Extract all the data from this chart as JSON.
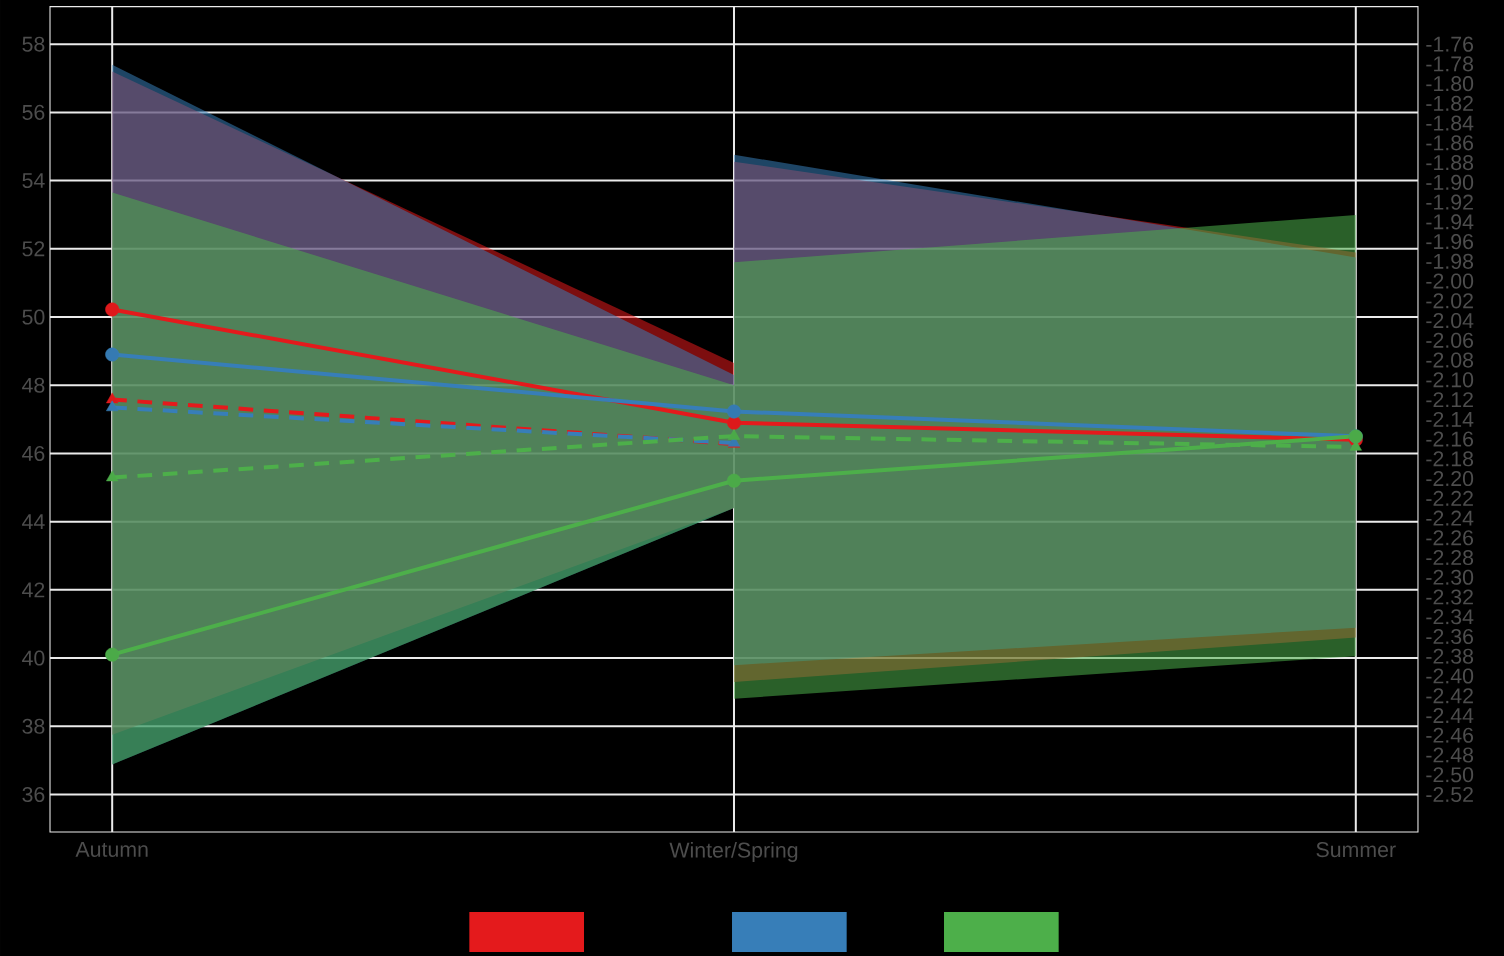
{
  "chart_data": {
    "type": "line",
    "categories": [
      "Autumn",
      "Winter/Spring",
      "Summer"
    ],
    "series": [
      {
        "type": "line",
        "color": "#e41a1c",
        "values": [
          50.22,
          46.9,
          46.4
        ],
        "lower": [
          37.75,
          44.4,
          null
        ],
        "upper": [
          57.2,
          48.65,
          null
        ],
        "marker": "circle",
        "line_style": "solid"
      },
      {
        "type": "line",
        "color": "#377eb8",
        "values": [
          48.9,
          47.23,
          46.5
        ],
        "lower": [
          36.88,
          44.4,
          null
        ],
        "upper": [
          57.4,
          48.3,
          null
        ],
        "marker": "circle",
        "line_style": "solid"
      },
      {
        "type": "line",
        "color": "#4daf4a",
        "values": [
          40.1,
          45.2,
          46.5
        ],
        "lower": [
          36.88,
          44.4,
          null
        ],
        "upper": [
          53.65,
          48.0,
          null
        ],
        "marker": "circle",
        "line_style": "solid"
      },
      {
        "type": "line",
        "color": "#e41a1c",
        "axis": "y2",
        "values": [
          -2.12,
          -2.165,
          null
        ],
        "lower": [
          null,
          -2.406,
          -2.361
        ],
        "upper": [
          null,
          -1.879,
          -1.971
        ],
        "marker": "triangle",
        "line_style": "dashed"
      },
      {
        "type": "line",
        "color": "#377eb8",
        "axis": "y2",
        "values": [
          -2.128,
          -2.164,
          null
        ],
        "lower": [
          null,
          -2.389,
          -2.351
        ],
        "upper": [
          null,
          -1.872,
          -1.976
        ],
        "marker": "triangle",
        "line_style": "dashed"
      },
      {
        "type": "line",
        "color": "#4daf4a",
        "axis": "y2",
        "values": [
          -2.199,
          -2.157,
          -2.168
        ],
        "lower": [
          null,
          -2.423,
          -2.38
        ],
        "upper": [
          null,
          -1.981,
          -1.933
        ],
        "marker": "triangle",
        "line_style": "dashed"
      }
    ],
    "ylim": [
      34.9,
      59.1
    ],
    "yticks": [
      36,
      38,
      40,
      42,
      44,
      46,
      48,
      50,
      52,
      54,
      56,
      58
    ],
    "y2lim": [
      -2.558,
      -1.722
    ],
    "y2ticks": [
      -1.76,
      -1.78,
      {
        "value": -1.8,
        "label": "-1.80"
      },
      -1.82,
      -1.84,
      -1.86,
      -1.88,
      {
        "value": -1.9,
        "label": "-1.90"
      },
      -1.92,
      -1.94,
      -1.96,
      -1.98,
      {
        "value": -2.0,
        "label": "-2.00"
      },
      -2.02,
      -2.04,
      -2.06,
      -2.08,
      {
        "value": -2.1,
        "label": "-2.10"
      },
      -2.12,
      -2.14,
      -2.16,
      -2.18,
      {
        "value": -2.2,
        "label": "-2.20"
      },
      -2.22,
      -2.24,
      -2.26,
      -2.28,
      {
        "value": -2.3,
        "label": "-2.30"
      },
      -2.32,
      -2.34,
      -2.36,
      -2.38,
      {
        "value": -2.4,
        "label": "-2.40"
      },
      -2.42,
      -2.44,
      -2.46,
      -2.48,
      {
        "value": -2.5,
        "label": "-2.50"
      },
      -2.52
    ],
    "grid": true
  }
}
